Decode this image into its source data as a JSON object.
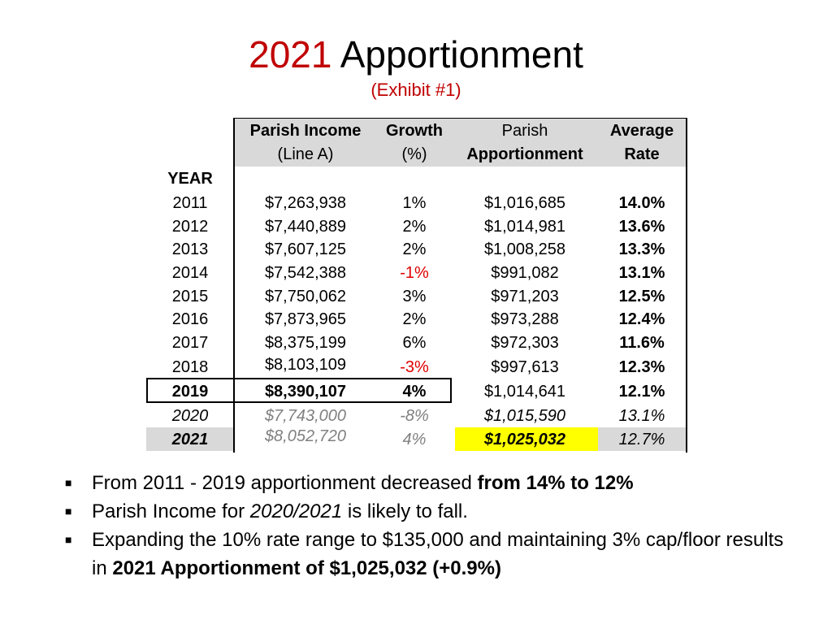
{
  "title": {
    "year": "2021",
    "text": "Apportionment"
  },
  "subtitle": "(Exhibit #1)",
  "table": {
    "year_label": "YEAR",
    "headers": [
      {
        "line1": "Parish  Income",
        "line2": "(Line A)"
      },
      {
        "line1": "Growth",
        "line2": "(%)"
      },
      {
        "line1": "Parish",
        "line2": "Apportionment"
      },
      {
        "line1": "Average",
        "line2": "Rate"
      }
    ],
    "rows": [
      {
        "year": "2011",
        "income": "$7,263,938",
        "growth": "1%",
        "apportionment": "$1,016,685",
        "rate": "14.0%"
      },
      {
        "year": "2012",
        "income": "$7,440,889",
        "growth": "2%",
        "apportionment": "$1,014,981",
        "rate": "13.6%"
      },
      {
        "year": "2013",
        "income": "$7,607,125",
        "growth": "2%",
        "apportionment": "$1,008,258",
        "rate": "13.3%"
      },
      {
        "year": "2014",
        "income": "$7,542,388",
        "growth": "-1%",
        "apportionment": "$991,082",
        "rate": "13.1%"
      },
      {
        "year": "2015",
        "income": "$7,750,062",
        "growth": "3%",
        "apportionment": "$971,203",
        "rate": "12.5%"
      },
      {
        "year": "2016",
        "income": "$7,873,965",
        "growth": "2%",
        "apportionment": "$973,288",
        "rate": "12.4%"
      },
      {
        "year": "2017",
        "income": "$8,375,199",
        "growth": "6%",
        "apportionment": "$972,303",
        "rate": "11.6%"
      },
      {
        "year": "2018",
        "income": "$8,103,109",
        "growth": "-3%",
        "apportionment": "$997,613",
        "rate": "12.3%"
      },
      {
        "year": "2019",
        "income": "$8,390,107",
        "growth": "4%",
        "apportionment": "$1,014,641",
        "rate": "12.1%"
      },
      {
        "year": "2020",
        "income": "$7,743,000",
        "growth": "-8%",
        "apportionment": "$1,015,590",
        "rate": "13.1%"
      },
      {
        "year": "2021",
        "income": "$8,052,720",
        "growth": "4%",
        "apportionment": "$1,025,032",
        "rate": "12.7%"
      }
    ]
  },
  "bullets": [
    {
      "pre": "From 2011 - 2019 apportionment decreased ",
      "bold": "from 14% to 12%"
    },
    {
      "pre": "Parish Income for ",
      "italic": "2020/2021",
      "post": " is likely to fall."
    },
    {
      "pre": "Expanding the 10% rate range to $135,000 and maintaining 3% cap/floor results in ",
      "bold": "2021 Apportionment  of $1,025,032 (+0.9%)"
    }
  ],
  "colors": {
    "title_accent": "#c00000",
    "negative": "#e00000",
    "highlight": "#ffff00",
    "header_bg": "#d9d9d9",
    "projected": "#808080"
  }
}
